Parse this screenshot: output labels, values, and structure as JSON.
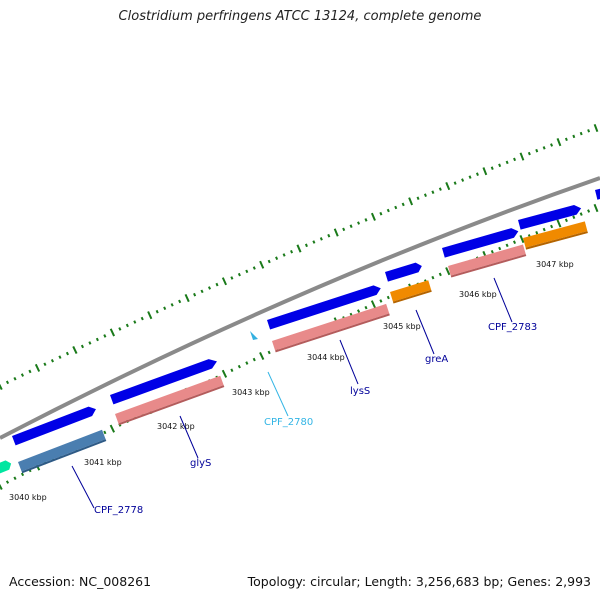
{
  "title": "Clostridium perfringens ATCC 13124, complete genome",
  "accession_line": "Accession: NC_008261",
  "topology_line": "Topology: circular; Length: 3,256,683 bp; Genes: 2,993",
  "colors": {
    "backbone": "#8a8a8a",
    "cds_forward": "#0000e6",
    "gene_pink": "#e88a8a",
    "gene_orange": "#f08a00",
    "gene_steelblue": "#4a7eb0",
    "gene_green": "#00e6a0",
    "gene_cyan": "#33b0e0",
    "label_dark": "#000099",
    "label_cyan": "#33b5e5",
    "ticks": "#1a7a1a"
  },
  "scale_labels": [
    "3040 kbp",
    "3041 kbp",
    "3042 kbp",
    "3043 kbp",
    "3044 kbp",
    "3045 kbp",
    "3046 kbp",
    "3047 kbp"
  ],
  "gene_labels": [
    {
      "text": "CPF_2778",
      "color": "#000099"
    },
    {
      "text": "glyS",
      "color": "#000099"
    },
    {
      "text": "CPF_2780",
      "color": "#33b5e5"
    },
    {
      "text": "lysS",
      "color": "#000099"
    },
    {
      "text": "greA",
      "color": "#000099"
    },
    {
      "text": "CPF_2783",
      "color": "#000099"
    }
  ]
}
